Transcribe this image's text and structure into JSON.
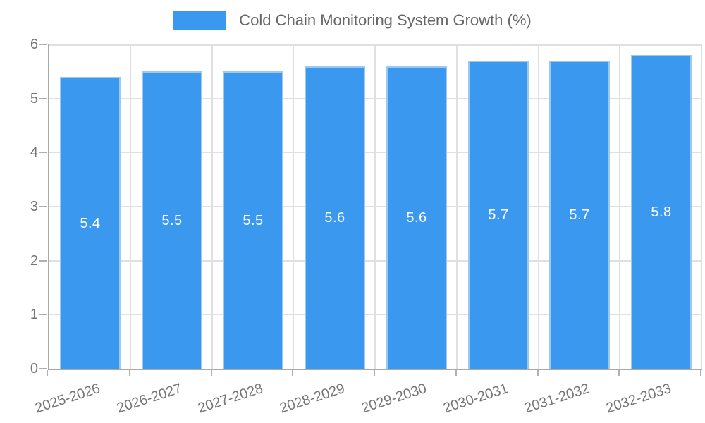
{
  "legend": {
    "label": "Cold Chain Monitoring System Growth (%)"
  },
  "colors": {
    "bar": "#3a99ee",
    "bar_border": "#9cc8f3",
    "grid": "#e0e0e0",
    "axis": "#a9a9a9",
    "tick": "#b0b0b0",
    "axis_label_text": "#757575",
    "legend_text": "#666666",
    "bar_label_text": "#ffffff",
    "background": "#ffffff"
  },
  "chart_data": {
    "type": "bar",
    "title": "Cold Chain Monitoring System Growth (%)",
    "categories": [
      "2025-2026",
      "2026-2027",
      "2027-2028",
      "2028-2029",
      "2029-2030",
      "2030-2031",
      "2031-2032",
      "2032-2033"
    ],
    "values": [
      5.4,
      5.5,
      5.5,
      5.6,
      5.6,
      5.7,
      5.7,
      5.8
    ],
    "bar_labels": [
      "5.4",
      "5.5",
      "5.5",
      "5.6",
      "5.6",
      "5.7",
      "5.7",
      "5.8"
    ],
    "xlabel": "",
    "ylabel": "",
    "ylim": [
      0,
      6
    ],
    "yticks": [
      0,
      1,
      2,
      3,
      4,
      5,
      6
    ],
    "ytick_labels": [
      "0",
      "1",
      "2",
      "3",
      "4",
      "5",
      "6"
    ],
    "grid": true,
    "legend_position": "top",
    "x_label_rotation_deg": -18
  }
}
